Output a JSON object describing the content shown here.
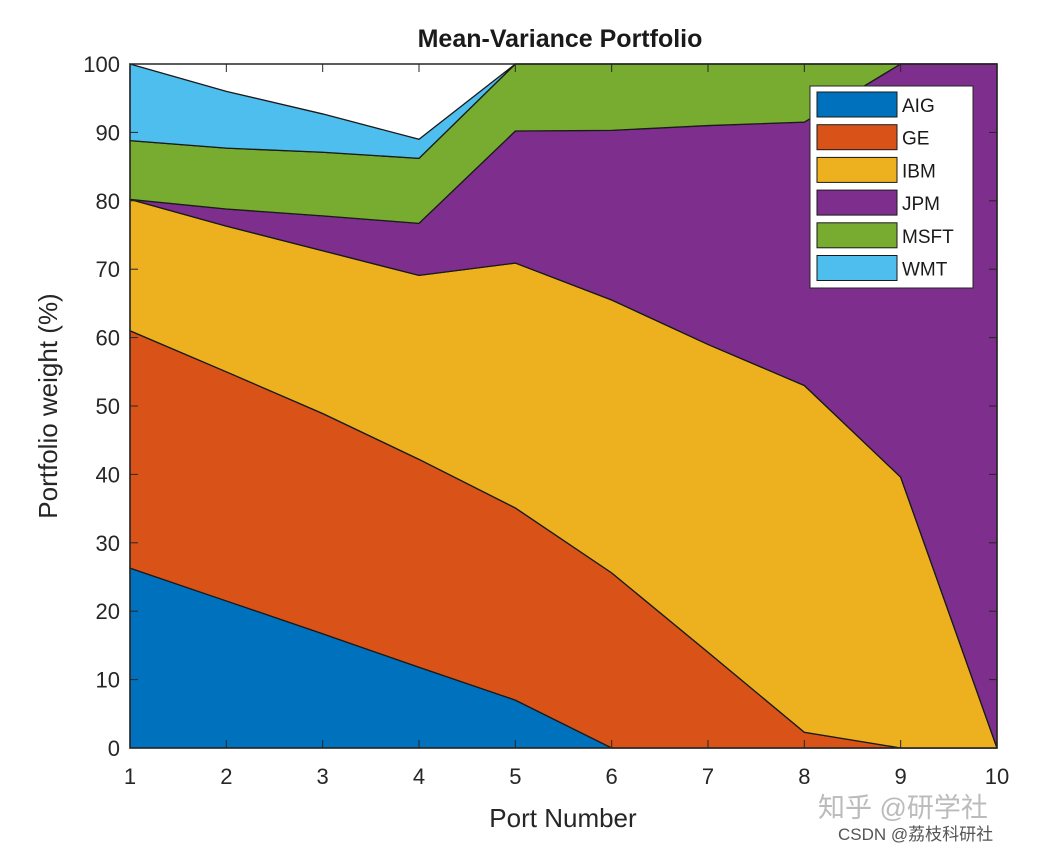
{
  "chart_data": {
    "type": "area",
    "title": "Mean-Variance Portfolio",
    "xlabel": "Port Number",
    "ylabel": "Portfolio weight (%)",
    "xlim": [
      1,
      10
    ],
    "ylim": [
      0,
      100
    ],
    "x": [
      1,
      2,
      3,
      4,
      5,
      6,
      7,
      8,
      9,
      10
    ],
    "xticks": [
      "1",
      "2",
      "3",
      "4",
      "5",
      "6",
      "7",
      "8",
      "9",
      "10"
    ],
    "yticks": [
      "0",
      "10",
      "20",
      "30",
      "40",
      "50",
      "60",
      "70",
      "80",
      "90",
      "100"
    ],
    "grid": false,
    "stacked": true,
    "legend_position": "upper right",
    "series": [
      {
        "name": "AIG",
        "color": "#0072BD",
        "values": [
          26.3,
          21.5,
          16.7,
          11.8,
          7.0,
          0.0,
          0.0,
          0.0,
          0.0,
          0.0
        ]
      },
      {
        "name": "GE",
        "color": "#D95319",
        "values": [
          34.7,
          33.5,
          32.2,
          30.4,
          28.1,
          25.6,
          14.0,
          2.3,
          0.0,
          0.0
        ]
      },
      {
        "name": "IBM",
        "color": "#EDB120",
        "values": [
          19.2,
          21.3,
          23.8,
          26.9,
          35.8,
          39.9,
          45.0,
          50.7,
          39.6,
          0.0
        ]
      },
      {
        "name": "JPM",
        "color": "#7E2F8E",
        "values": [
          0.0,
          2.5,
          5.1,
          7.6,
          19.3,
          24.8,
          32.0,
          38.5,
          60.4,
          100.0
        ]
      },
      {
        "name": "MSFT",
        "color": "#77AC30",
        "values": [
          8.6,
          8.9,
          9.3,
          9.5,
          9.8,
          9.7,
          9.0,
          8.5,
          0.0,
          0.0
        ]
      },
      {
        "name": "WMT",
        "color": "#4DBEEE",
        "values": [
          11.2,
          8.3,
          5.6,
          2.8,
          0.0,
          0.0,
          0.0,
          0.0,
          0.0,
          0.0
        ]
      }
    ]
  },
  "watermark": {
    "zhihu": "知乎 @研学社",
    "csdn": "CSDN @荔枝科研社"
  }
}
